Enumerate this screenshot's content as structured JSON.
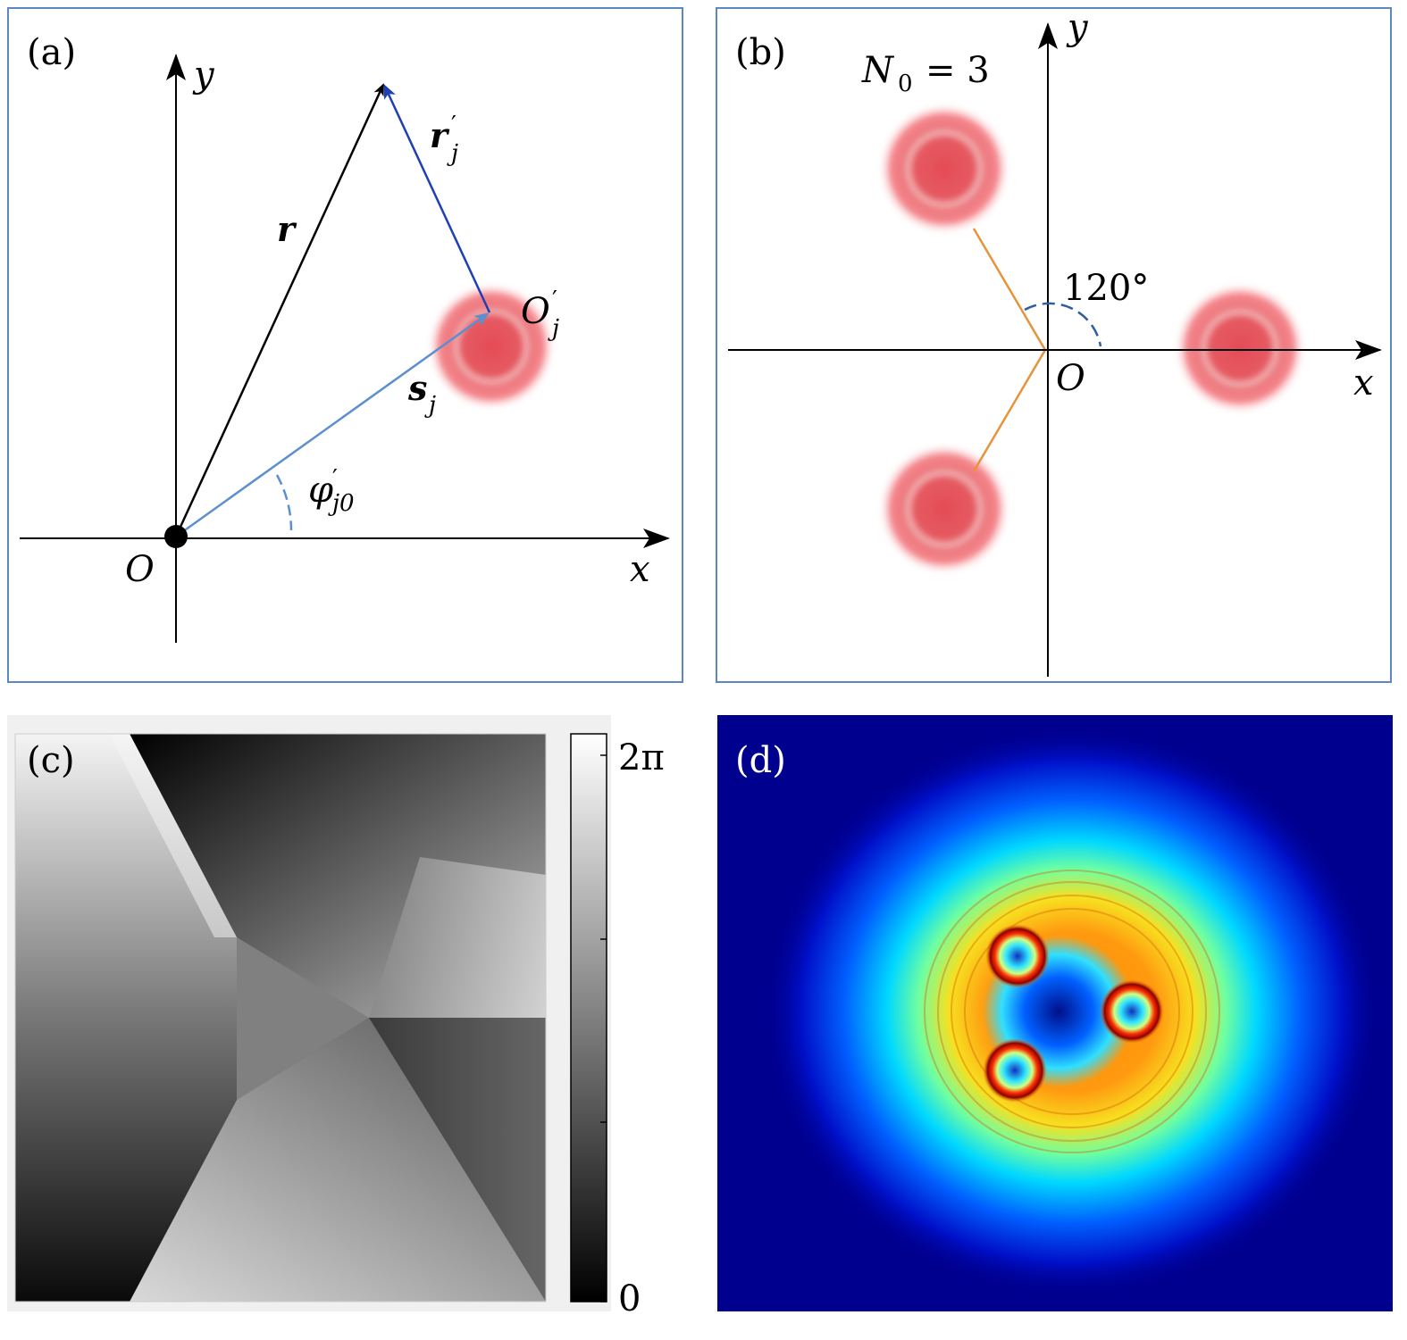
{
  "panels": {
    "a": {
      "tag": "(a)",
      "axis_x": "x",
      "axis_y": "y",
      "origin": "O",
      "vec_r": "r",
      "vec_r_prime": "r",
      "vec_r_prime_sup": "′",
      "vec_r_prime_sub": "j",
      "vec_s": "s",
      "vec_s_sub": "j",
      "point_O_prime": "O",
      "point_O_prime_sup": "′",
      "point_O_prime_sub": "j",
      "angle_main": "φ",
      "angle_sup": "′",
      "angle_sub": "j0"
    },
    "b": {
      "tag": "(b)",
      "n0_label": "N",
      "n0_sub": "0",
      "n0_value": "= 3",
      "angle_label": "120°",
      "axis_x": "x",
      "axis_y": "y",
      "origin": "O"
    },
    "c": {
      "tag": "(c)",
      "colorbar_max": "2π",
      "colorbar_min": "0"
    },
    "d": {
      "tag": "(d)"
    }
  },
  "colors": {
    "frame": "#5b87c5",
    "vector_blue": "#1f3fb4",
    "vector_lightblue": "#5b8fd0",
    "beam_red": "#e84d55",
    "orange_line": "#e8923a",
    "jet_background": "#00008f"
  }
}
